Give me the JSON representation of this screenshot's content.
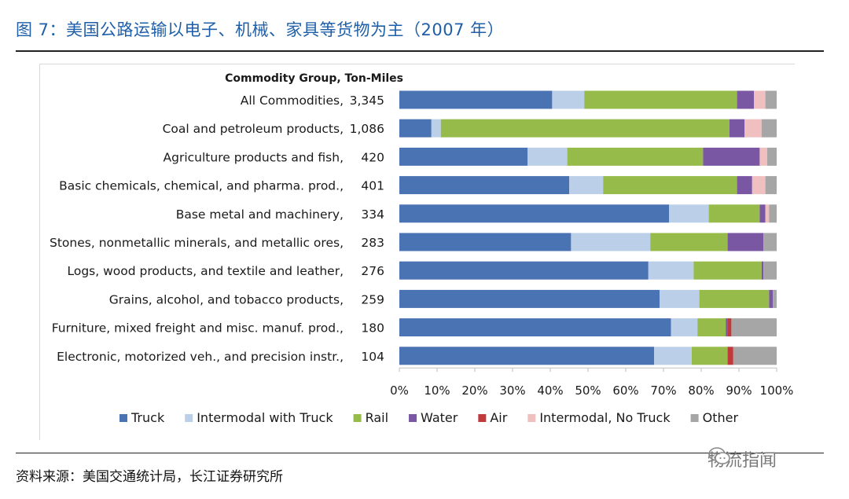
{
  "figure": {
    "title": "图 7：美国公路运输以电子、机械、家具等货物为主（2007 年）",
    "source": "资料来源：美国交通统计局，长江证券研究所",
    "watermark": "物流指闻"
  },
  "chart_data": {
    "type": "bar",
    "orientation": "horizontal",
    "stacked": true,
    "title": "",
    "header": "Commodity Group,   Ton-Miles",
    "categories": [
      "All Commodities,",
      "Coal and petroleum products,",
      "Agriculture products and fish,",
      "Basic chemicals, chemical, and pharma. prod.,",
      "Base metal and machinery,",
      "Stones, nonmetallic minerals, and metallic ores,",
      "Logs, wood products, and textile and leather,",
      "Grains, alcohol, and tobacco products,",
      "Furniture, mixed freight and misc. manuf. prod.,",
      "Electronic, motorized veh., and precision instr.,"
    ],
    "ton_miles": [
      "3,345",
      "1,086",
      "420",
      "401",
      "334",
      "283",
      "276",
      "259",
      "180",
      "104"
    ],
    "series": [
      {
        "name": "Truck",
        "color": "#4a73b3",
        "values": [
          40.5,
          8.5,
          34,
          45,
          71.5,
          45.5,
          66,
          69,
          72,
          67.5
        ]
      },
      {
        "name": "Intermodal with Truck",
        "color": "#bccfe8",
        "values": [
          8.5,
          2.5,
          10.5,
          9,
          10.5,
          21,
          12,
          10.5,
          7,
          10
        ]
      },
      {
        "name": "Rail",
        "color": "#96bb4a",
        "values": [
          40.5,
          76.5,
          36,
          35.5,
          13.5,
          20.5,
          18,
          18.5,
          7.5,
          9.5
        ]
      },
      {
        "name": "Water",
        "color": "#7a57a3",
        "values": [
          4.5,
          4,
          15,
          4,
          1.5,
          9.5,
          0.5,
          1,
          0.5,
          0
        ]
      },
      {
        "name": "Air",
        "color": "#c0393b",
        "values": [
          0,
          0,
          0,
          0,
          0,
          0,
          0,
          0,
          1,
          1.5
        ]
      },
      {
        "name": "Intermodal, No Truck",
        "color": "#f0bfc0",
        "values": [
          3,
          4.5,
          2,
          3.5,
          1,
          0,
          0,
          0,
          0,
          0
        ]
      },
      {
        "name": "Other",
        "color": "#a6a6a6",
        "values": [
          3,
          4,
          2.5,
          3,
          2,
          3.5,
          3.5,
          1,
          12,
          11.5
        ]
      }
    ],
    "xlim": [
      0,
      100
    ],
    "xticks": [
      "0%",
      "10%",
      "20%",
      "30%",
      "40%",
      "50%",
      "60%",
      "70%",
      "80%",
      "90%",
      "100%"
    ],
    "xlabel": "",
    "ylabel": "",
    "grid": false,
    "legend_position": "bottom"
  }
}
